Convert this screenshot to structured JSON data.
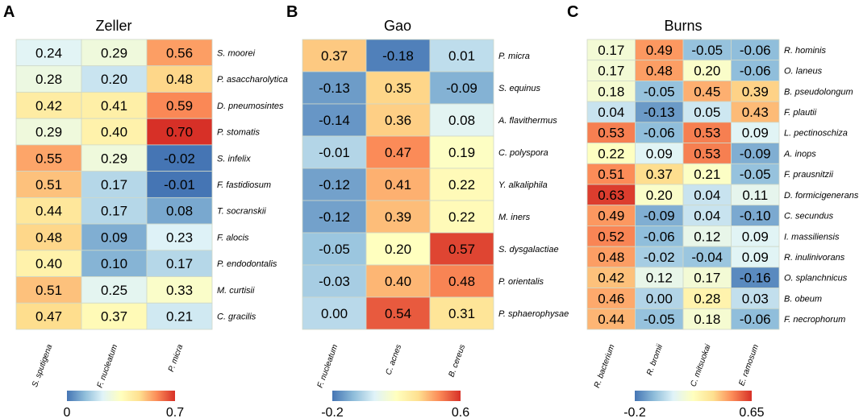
{
  "chart_data": [
    {
      "type": "heatmap",
      "panel": "A",
      "title": "Zeller",
      "rows": [
        "S. moorei",
        "P. asaccharolytica",
        "D. pneumosintes",
        "P. stomatis",
        "S. infelix",
        "F. fastidiosum",
        "T. socranskii",
        "F. alocis",
        "P. endodontalis",
        "M. curtisii",
        "C. gracilis"
      ],
      "columns": [
        "S. sputigena",
        "F. nucleatum",
        "P. micra"
      ],
      "values": [
        [
          0.24,
          0.29,
          0.56
        ],
        [
          0.28,
          0.2,
          0.48
        ],
        [
          0.42,
          0.41,
          0.59
        ],
        [
          0.29,
          0.4,
          0.7
        ],
        [
          0.55,
          0.29,
          -0.02
        ],
        [
          0.51,
          0.17,
          -0.01
        ],
        [
          0.44,
          0.17,
          0.08
        ],
        [
          0.48,
          0.09,
          0.23
        ],
        [
          0.4,
          0.1,
          0.17
        ],
        [
          0.51,
          0.25,
          0.33
        ],
        [
          0.47,
          0.37,
          0.21
        ]
      ],
      "colorbar": {
        "min": 0,
        "max": 0.7,
        "min_label": "0",
        "max_label": "0.7"
      }
    },
    {
      "type": "heatmap",
      "panel": "B",
      "title": "Gao",
      "rows": [
        "P. micra",
        "S. equinus",
        "A. flavithermus",
        "C. polyspora",
        "Y. alkaliphila",
        "M. iners",
        "S. dysgalactiae",
        "P. orientalis",
        "P. sphaerophysae"
      ],
      "columns": [
        "F. nucleatum",
        "C. acnes",
        "B. cereus"
      ],
      "values": [
        [
          0.37,
          -0.18,
          0.01
        ],
        [
          -0.13,
          0.35,
          -0.09
        ],
        [
          -0.14,
          0.36,
          0.08
        ],
        [
          -0.01,
          0.47,
          0.19
        ],
        [
          -0.12,
          0.41,
          0.22
        ],
        [
          -0.12,
          0.39,
          0.22
        ],
        [
          -0.05,
          0.2,
          0.57
        ],
        [
          -0.03,
          0.4,
          0.48
        ],
        [
          -0.0,
          0.54,
          0.31
        ]
      ],
      "colorbar": {
        "min": -0.2,
        "max": 0.6,
        "min_label": "-0.2",
        "max_label": "0.6"
      }
    },
    {
      "type": "heatmap",
      "panel": "C",
      "title": "Burns",
      "rows": [
        "R. hominis",
        "O. laneus",
        "B. pseudolongum",
        "F. plautii",
        "L. pectinoschiza",
        "A. inops",
        "F. prausnitzii",
        "D. formicigenerans",
        "C. secundus",
        "I. massiliensis",
        "R. inulinivorans",
        "O. splanchnicus",
        "B. obeum",
        "F. necrophorum"
      ],
      "columns": [
        "R. bacterium",
        "R. bromii",
        "C. mitsuokai",
        "E. ramosum"
      ],
      "values": [
        [
          0.17,
          0.49,
          -0.05,
          -0.06
        ],
        [
          0.17,
          0.48,
          0.2,
          -0.06
        ],
        [
          0.18,
          -0.05,
          0.45,
          0.39
        ],
        [
          0.04,
          -0.13,
          0.05,
          0.43
        ],
        [
          0.53,
          -0.06,
          0.53,
          0.09
        ],
        [
          0.22,
          0.09,
          0.53,
          -0.09
        ],
        [
          0.51,
          0.37,
          0.21,
          -0.05
        ],
        [
          0.63,
          0.2,
          0.04,
          0.11
        ],
        [
          0.49,
          -0.09,
          0.04,
          -0.1
        ],
        [
          0.52,
          -0.06,
          0.12,
          0.09
        ],
        [
          0.48,
          -0.02,
          -0.04,
          0.09
        ],
        [
          0.42,
          0.12,
          0.17,
          -0.16
        ],
        [
          0.46,
          -0.0,
          0.28,
          0.03
        ],
        [
          0.44,
          -0.05,
          0.18,
          -0.06
        ]
      ],
      "colorbar": {
        "min": -0.2,
        "max": 0.65,
        "min_label": "-0.2",
        "max_label": "0.65"
      }
    }
  ],
  "color_scale": [
    "#4575b4",
    "#91bfdb",
    "#e0f3f8",
    "#ffffbf",
    "#fee090",
    "#fc8d59",
    "#d73027"
  ]
}
